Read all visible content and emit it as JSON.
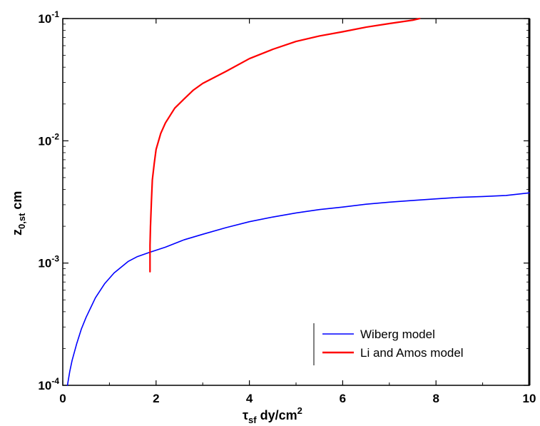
{
  "chart_data": {
    "type": "line",
    "xlabel": {
      "main": "τ",
      "sub": "sf",
      "rest": " dy/cm",
      "sup": "2"
    },
    "ylabel": {
      "main": "z",
      "sub": "0,st",
      "rest": " cm"
    },
    "xlim": [
      0,
      10
    ],
    "ylim": [
      0.0001,
      0.1
    ],
    "yscale": "log",
    "grid": false,
    "legend_position": "bottom-right",
    "x_ticks": [
      0,
      2,
      4,
      6,
      8,
      10
    ],
    "x_tick_labels": [
      "0",
      "2",
      "4",
      "6",
      "8",
      "10"
    ],
    "y_ticks": [
      0.0001,
      0.001,
      0.01,
      0.1
    ],
    "y_tick_labels": [
      {
        "base": "10",
        "exp": "-4"
      },
      {
        "base": "10",
        "exp": "-3"
      },
      {
        "base": "10",
        "exp": "-2"
      },
      {
        "base": "10",
        "exp": "-1"
      }
    ],
    "series": [
      {
        "name": "Wiberg model",
        "color": "#0000ff",
        "x": [
          0.1,
          0.15,
          0.2,
          0.3,
          0.4,
          0.5,
          0.7,
          0.9,
          1.1,
          1.4,
          1.6,
          1.85,
          2.2,
          2.6,
          3.0,
          3.5,
          4.0,
          4.5,
          5.0,
          5.5,
          6.0,
          6.5,
          7.0,
          7.5,
          8.0,
          8.5,
          9.0,
          9.5,
          10.0
        ],
        "y": [
          0.0001,
          0.00013,
          0.00016,
          0.00022,
          0.00029,
          0.00036,
          0.00052,
          0.00068,
          0.00083,
          0.00103,
          0.00113,
          0.00122,
          0.00135,
          0.00155,
          0.00172,
          0.00195,
          0.00218,
          0.00238,
          0.00257,
          0.00274,
          0.00287,
          0.00303,
          0.00315,
          0.00325,
          0.00335,
          0.00345,
          0.0035,
          0.00357,
          0.00375
        ]
      },
      {
        "name": "Li and Amos model",
        "color": "#ff0000",
        "x": [
          1.87,
          1.87,
          1.88,
          1.9,
          1.92,
          1.96,
          2.0,
          2.1,
          2.2,
          2.4,
          2.6,
          2.8,
          3.0,
          3.5,
          4.0,
          4.5,
          5.0,
          5.5,
          6.0,
          6.5,
          7.0,
          7.5,
          7.65
        ],
        "y": [
          0.00085,
          0.0014,
          0.002,
          0.0032,
          0.0048,
          0.0065,
          0.0085,
          0.0115,
          0.014,
          0.0185,
          0.022,
          0.026,
          0.0295,
          0.037,
          0.047,
          0.056,
          0.065,
          0.072,
          0.078,
          0.085,
          0.091,
          0.097,
          0.1
        ]
      }
    ]
  }
}
